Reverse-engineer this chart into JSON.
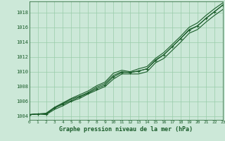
{
  "background_color": "#cce8d8",
  "grid_color": "#99ccaa",
  "line_color": "#1a5c2a",
  "text_color": "#1a5c2a",
  "xlabel": "Graphe pression niveau de la mer (hPa)",
  "xlim": [
    0,
    23
  ],
  "ylim": [
    1003.5,
    1019.5
  ],
  "yticks": [
    1004,
    1006,
    1008,
    1010,
    1012,
    1014,
    1016,
    1018
  ],
  "xticks": [
    0,
    1,
    2,
    3,
    4,
    5,
    6,
    7,
    8,
    9,
    10,
    11,
    12,
    13,
    14,
    15,
    16,
    17,
    18,
    19,
    20,
    21,
    22,
    23
  ],
  "series": [
    [
      1004.2,
      1004.3,
      1004.2,
      1004.9,
      1005.5,
      1006.1,
      1006.5,
      1007.0,
      1007.6,
      1008.2,
      1009.2,
      1009.9,
      1009.8,
      1009.9,
      1010.3,
      1011.5,
      1012.1,
      1013.2,
      1014.3,
      1015.5,
      1016.0,
      1017.0,
      1017.9,
      1018.7
    ],
    [
      1004.2,
      1004.3,
      1004.3,
      1005.1,
      1005.7,
      1006.3,
      1006.7,
      1007.2,
      1007.9,
      1008.4,
      1009.5,
      1010.0,
      1009.9,
      1010.1,
      1010.4,
      1011.6,
      1012.3,
      1013.4,
      1014.5,
      1015.7,
      1016.2,
      1017.2,
      1018.1,
      1019.0
    ],
    [
      1004.2,
      1004.3,
      1004.4,
      1005.2,
      1005.8,
      1006.4,
      1006.9,
      1007.4,
      1008.1,
      1008.6,
      1009.8,
      1010.2,
      1010.0,
      1010.4,
      1010.7,
      1011.8,
      1012.6,
      1013.7,
      1014.8,
      1016.0,
      1016.6,
      1017.6,
      1018.5,
      1019.3
    ],
    [
      1004.2,
      1004.3,
      1004.4,
      1005.1,
      1005.7,
      1006.3,
      1006.7,
      1007.2,
      1007.8,
      1008.3,
      1009.6,
      1010.0,
      1009.9,
      1010.2,
      1010.5,
      1011.7,
      1012.5,
      1013.5,
      1014.7,
      1015.8,
      1016.4,
      1017.4,
      1018.2,
      1019.1
    ]
  ],
  "smooth_series": [
    [
      1004.2,
      1004.3,
      1004.2,
      1004.9,
      1005.4,
      1006.0,
      1006.4,
      1007.0,
      1007.5,
      1008.0,
      1009.0,
      1009.7,
      1009.7,
      1009.7,
      1010.0,
      1011.2,
      1011.8,
      1012.9,
      1014.0,
      1015.2,
      1015.7,
      1016.7,
      1017.6,
      1018.4
    ],
    [
      1004.2,
      1004.3,
      1004.3,
      1005.1,
      1005.7,
      1006.3,
      1006.7,
      1007.2,
      1007.9,
      1008.4,
      1009.5,
      1010.0,
      1009.9,
      1010.1,
      1010.4,
      1011.6,
      1012.3,
      1013.4,
      1014.5,
      1015.7,
      1016.2,
      1017.2,
      1018.1,
      1019.0
    ],
    [
      1004.2,
      1004.3,
      1004.4,
      1005.2,
      1005.8,
      1006.4,
      1006.9,
      1007.4,
      1008.1,
      1008.6,
      1009.8,
      1010.2,
      1010.0,
      1010.4,
      1010.7,
      1011.8,
      1012.6,
      1013.7,
      1014.8,
      1016.0,
      1016.6,
      1017.6,
      1018.5,
      1019.3
    ]
  ],
  "marker_series": [
    1004.2,
    1004.3,
    1004.3,
    1005.1,
    1005.6,
    1006.1,
    1006.6,
    1007.1,
    1007.7,
    1008.2,
    1009.3,
    1009.9,
    1009.9,
    1010.1,
    1010.4,
    1011.5,
    1012.3,
    1013.4,
    1014.5,
    1015.6,
    1016.2,
    1017.2,
    1018.1,
    1019.0
  ],
  "marker": "+",
  "markersize": 3.5,
  "linewidth": 0.8
}
